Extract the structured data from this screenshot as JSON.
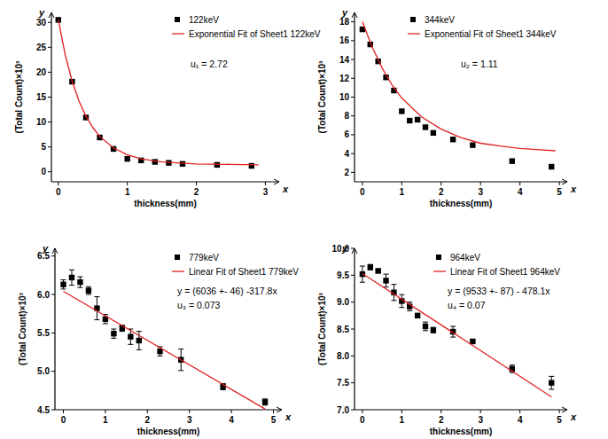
{
  "chart_data": [
    {
      "type": "scatter",
      "x_axis_name": "x",
      "y_axis_name": "y",
      "xlabel": "thickness(mm)",
      "ylabel": "(Total Count)×10³",
      "xlim": [
        -0.1,
        3.2
      ],
      "xticks": [
        0,
        1,
        2,
        3
      ],
      "ylim": [
        -2,
        32
      ],
      "yticks": [
        0,
        5,
        10,
        15,
        20,
        25,
        30
      ],
      "grid": false,
      "legend": "upper right",
      "annotations": [
        "u₁ = 2.72"
      ],
      "series": [
        {
          "name": "122keV",
          "type": "scatter",
          "marker": "square",
          "color": "#000000",
          "x": [
            0,
            0.2,
            0.4,
            0.6,
            0.8,
            1.0,
            1.2,
            1.4,
            1.6,
            1.8,
            2.3,
            2.8
          ],
          "values": [
            30.5,
            18.1,
            10.9,
            6.9,
            4.6,
            2.6,
            2.3,
            2.0,
            1.8,
            1.6,
            1.4,
            1.2
          ]
        },
        {
          "name": "Exponential Fit of Sheet1 122keV",
          "type": "line",
          "line_style": "solid",
          "color": "#e02020",
          "x": [
            0,
            0.1,
            0.2,
            0.3,
            0.4,
            0.5,
            0.6,
            0.8,
            1.0,
            1.2,
            1.5,
            2.0,
            2.5,
            2.9
          ],
          "values": [
            30.5,
            23.5,
            18.2,
            14.2,
            11.2,
            8.9,
            7.1,
            4.8,
            3.4,
            2.6,
            2.0,
            1.6,
            1.5,
            1.4
          ]
        }
      ]
    },
    {
      "type": "scatter",
      "x_axis_name": "x",
      "y_axis_name": "y",
      "xlabel": "thickness(mm)",
      "ylabel": "(Total Count)×10³",
      "xlim": [
        -0.2,
        5.2
      ],
      "xticks": [
        0,
        1,
        2,
        3,
        4,
        5
      ],
      "ylim": [
        1,
        19
      ],
      "yticks": [
        2,
        4,
        6,
        8,
        10,
        12,
        14,
        16,
        18
      ],
      "grid": false,
      "legend": "upper right",
      "annotations": [
        "u₂ = 1.11"
      ],
      "series": [
        {
          "name": "344keV",
          "type": "scatter",
          "marker": "square",
          "color": "#000000",
          "x": [
            0,
            0.2,
            0.4,
            0.6,
            0.8,
            1.0,
            1.2,
            1.4,
            1.6,
            1.8,
            2.3,
            2.8,
            3.8,
            4.8
          ],
          "values": [
            17.2,
            15.6,
            13.8,
            12.1,
            10.7,
            8.5,
            7.5,
            7.6,
            6.8,
            6.2,
            5.5,
            4.9,
            3.2,
            2.6
          ]
        },
        {
          "name": "Exponential Fit of Sheet1 344keV",
          "type": "line",
          "line_style": "solid",
          "color": "#e02020",
          "x": [
            0,
            0.25,
            0.5,
            0.75,
            1.0,
            1.5,
            2.0,
            2.5,
            3.0,
            3.5,
            4.0,
            4.5,
            4.9
          ],
          "values": [
            18.0,
            15.3,
            13.1,
            11.3,
            9.9,
            7.9,
            6.6,
            5.7,
            5.1,
            4.8,
            4.55,
            4.4,
            4.3
          ]
        }
      ]
    },
    {
      "type": "scatter",
      "x_axis_name": "x",
      "y_axis_name": "y",
      "xlabel": "thickness(mm)",
      "ylabel": "(Total Count)×10³",
      "xlim": [
        -0.2,
        5.2
      ],
      "xticks": [
        0,
        1,
        2,
        3,
        4,
        5
      ],
      "ylim": [
        4.5,
        6.6
      ],
      "yticks": [
        4.5,
        {
          "value": 5,
          "label": "5.0"
        },
        5.5,
        {
          "value": 6,
          "label": "6.0"
        },
        6.5
      ],
      "grid": false,
      "legend": "upper right",
      "annotations": [
        "y = (6036 +- 46) -317.8x",
        "u₃ = 0.073"
      ],
      "series": [
        {
          "name": "779keV",
          "type": "scatter",
          "marker": "square",
          "color": "#000000",
          "x": [
            0,
            0.2,
            0.4,
            0.6,
            0.8,
            1.0,
            1.2,
            1.4,
            1.6,
            1.8,
            2.3,
            2.8,
            3.8,
            4.8
          ],
          "values": [
            6.13,
            6.22,
            6.16,
            6.05,
            5.82,
            5.68,
            5.49,
            5.56,
            5.45,
            5.4,
            5.26,
            5.15,
            4.8,
            4.6
          ],
          "errors": [
            0.06,
            0.1,
            0.07,
            0.05,
            0.15,
            0.06,
            0.06,
            0.04,
            0.1,
            0.12,
            0.06,
            0.14,
            0.04,
            0.04
          ]
        },
        {
          "name": "Linear Fit of Sheet1 779keV",
          "type": "line",
          "line_style": "solid",
          "color": "#e02020",
          "x": [
            0,
            4.8
          ],
          "values": [
            6.04,
            4.51
          ]
        }
      ]
    },
    {
      "type": "scatter",
      "x_axis_name": "x",
      "y_axis_name": "y",
      "xlabel": "thickness(mm)",
      "ylabel": "(Total Count)×10³",
      "xlim": [
        -0.2,
        5.2
      ],
      "xticks": [
        0,
        1,
        2,
        3,
        4,
        5
      ],
      "ylim": [
        7.0,
        10.0
      ],
      "yticks": [
        {
          "value": 7,
          "label": "7.0"
        },
        7.5,
        {
          "value": 8,
          "label": "8.0"
        },
        8.5,
        {
          "value": 9,
          "label": "9.0"
        },
        9.5,
        {
          "value": 10,
          "label": "10.0"
        }
      ],
      "grid": false,
      "legend": "upper right",
      "annotations": [
        "y = (9533 +- 87) - 478.1x",
        "u₄ = 0.07"
      ],
      "series": [
        {
          "name": "964keV",
          "type": "scatter",
          "marker": "square",
          "color": "#000000",
          "x": [
            0,
            0.2,
            0.4,
            0.6,
            0.8,
            1.0,
            1.2,
            1.4,
            1.6,
            1.8,
            2.3,
            2.8,
            3.8,
            4.8
          ],
          "values": [
            9.52,
            9.65,
            9.58,
            9.4,
            9.18,
            9.02,
            8.92,
            8.75,
            8.55,
            8.48,
            8.45,
            8.27,
            7.76,
            7.5
          ],
          "errors": [
            0.15,
            0.05,
            0.03,
            0.12,
            0.15,
            0.12,
            0.08,
            0.03,
            0.08,
            0.05,
            0.1,
            0.03,
            0.07,
            0.12
          ]
        },
        {
          "name": "Linear Fit of Sheet1 964keV",
          "type": "line",
          "line_style": "solid",
          "color": "#e02020",
          "x": [
            0,
            4.8
          ],
          "values": [
            9.53,
            7.24
          ]
        }
      ]
    }
  ]
}
